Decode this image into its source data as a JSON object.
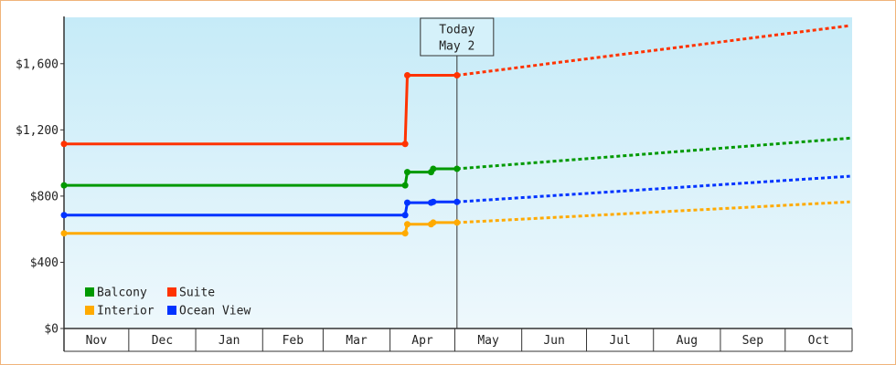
{
  "chart_data": {
    "type": "line",
    "x_ticks": [
      "Nov",
      "Dec",
      "Jan",
      "Feb",
      "Mar",
      "Apr",
      "May",
      "Jun",
      "Jul",
      "Aug",
      "Sep",
      "Oct"
    ],
    "x_range": [
      "Nov 1",
      "Oct 31"
    ],
    "y_ticks": [
      {
        "value": 0,
        "label": "$0"
      },
      {
        "value": 400,
        "label": "$400"
      },
      {
        "value": 800,
        "label": "$800"
      },
      {
        "value": 1200,
        "label": "$1,200"
      },
      {
        "value": 1600,
        "label": "$1,600"
      }
    ],
    "ylim": [
      0,
      1880
    ],
    "grid": false,
    "legend_position": "bottom-left",
    "today": {
      "label": "Today",
      "date": "May 2"
    },
    "series": [
      {
        "name": "Balcony",
        "color": "#009900",
        "points": [
          {
            "x": "Nov 1",
            "y": 865
          },
          {
            "x": "Apr 8",
            "y": 865
          },
          {
            "x": "Apr 9",
            "y": 945
          },
          {
            "x": "Apr 20",
            "y": 945
          },
          {
            "x": "Apr 21",
            "y": 965
          },
          {
            "x": "May 2",
            "y": 965
          }
        ],
        "projection": [
          {
            "x": "May 2",
            "y": 965
          },
          {
            "x": "Oct 31",
            "y": 1150
          }
        ]
      },
      {
        "name": "Suite",
        "color": "#ff3300",
        "points": [
          {
            "x": "Nov 1",
            "y": 1115
          },
          {
            "x": "Apr 8",
            "y": 1115
          },
          {
            "x": "Apr 9",
            "y": 1530
          },
          {
            "x": "May 2",
            "y": 1530
          }
        ],
        "projection": [
          {
            "x": "May 2",
            "y": 1530
          },
          {
            "x": "Oct 31",
            "y": 1830
          }
        ]
      },
      {
        "name": "Interior",
        "color": "#ffaa00",
        "points": [
          {
            "x": "Nov 1",
            "y": 575
          },
          {
            "x": "Apr 8",
            "y": 575
          },
          {
            "x": "Apr 9",
            "y": 630
          },
          {
            "x": "Apr 20",
            "y": 630
          },
          {
            "x": "Apr 21",
            "y": 640
          },
          {
            "x": "May 2",
            "y": 640
          }
        ],
        "projection": [
          {
            "x": "May 2",
            "y": 640
          },
          {
            "x": "Oct 31",
            "y": 765
          }
        ]
      },
      {
        "name": "Ocean View",
        "color": "#0033ff",
        "points": [
          {
            "x": "Nov 1",
            "y": 685
          },
          {
            "x": "Apr 8",
            "y": 685
          },
          {
            "x": "Apr 9",
            "y": 760
          },
          {
            "x": "Apr 20",
            "y": 760
          },
          {
            "x": "Apr 21",
            "y": 765
          },
          {
            "x": "May 2",
            "y": 765
          }
        ],
        "projection": [
          {
            "x": "May 2",
            "y": 765
          },
          {
            "x": "Oct 31",
            "y": 920
          }
        ]
      }
    ]
  }
}
